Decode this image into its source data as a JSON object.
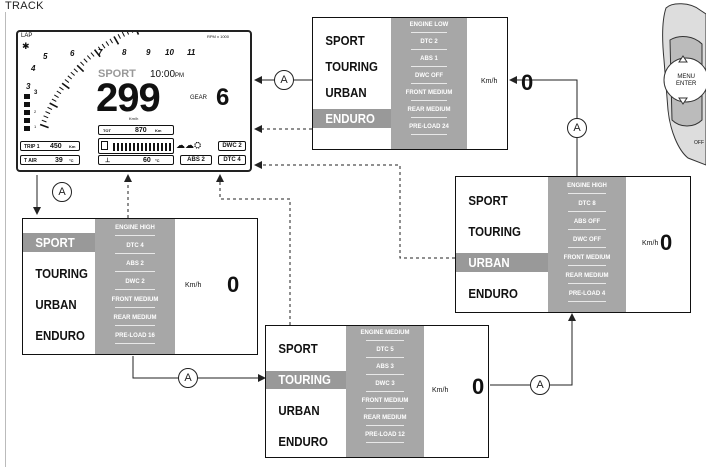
{
  "title": "TRACK",
  "dashboard": {
    "lap": "LAP",
    "rpm_label": "RPM x 1000",
    "rpm_ticks": [
      "3",
      "4",
      "5",
      "6",
      "7",
      "8",
      "9",
      "10",
      "11"
    ],
    "mode": "SPORT",
    "time": "10:00",
    "time_suffix": "PM",
    "speed": "299",
    "speed_unit": "Km/h",
    "gear_label": "GEAR",
    "gear": "6",
    "tot_label": "TOT",
    "tot_value": "870",
    "tot_unit": "Km",
    "trip_label": "TRIP 1",
    "trip_value": "450",
    "trip_unit": "Km",
    "tair_label": "T AIR",
    "tair_value": "39",
    "tair_unit": "°C",
    "coolant_value": "60",
    "coolant_unit": "°C",
    "dwc": "DWC 2",
    "abs": "ABS 2",
    "dtc": "DTC 4",
    "fuel_bar_ticks": [
      "1",
      "2",
      "3"
    ]
  },
  "panels": [
    {
      "modes": [
        "SPORT",
        "TOURING",
        "URBAN",
        "ENDURO"
      ],
      "selected": 3,
      "settings": [
        "ENGINE LOW",
        "DTC 2",
        "ABS 1",
        "DWC OFF",
        "FRONT MEDIUM",
        "REAR MEDIUM",
        "PRE-LOAD 24"
      ],
      "unit": "Km/h",
      "speed": "0"
    },
    {
      "modes": [
        "SPORT",
        "TOURING",
        "URBAN",
        "ENDURO"
      ],
      "selected": 2,
      "settings": [
        "ENGINE HIGH",
        "DTC 8",
        "ABS OFF",
        "DWC OFF",
        "FRONT MEDIUM",
        "REAR MEDIUM",
        "PRE-LOAD 4"
      ],
      "unit": "Km/h",
      "speed": "0"
    },
    {
      "modes": [
        "SPORT",
        "TOURING",
        "URBAN",
        "ENDURO"
      ],
      "selected": 0,
      "settings": [
        "ENGINE HIGH",
        "DTC 4",
        "ABS 2",
        "DWC 2",
        "FRONT MEDIUM",
        "REAR MEDIUM",
        "PRE-LOAD 16"
      ],
      "unit": "Km/h",
      "speed": "0"
    },
    {
      "modes": [
        "SPORT",
        "TOURING",
        "URBAN",
        "ENDURO"
      ],
      "selected": 1,
      "settings": [
        "ENGINE MEDIUM",
        "DTC 5",
        "ABS 3",
        "DWC 3",
        "FRONT MEDIUM",
        "REAR MEDIUM",
        "PRE-LOAD 12"
      ],
      "unit": "Km/h",
      "speed": "0"
    }
  ],
  "marker_label": "A",
  "switch": {
    "menu": "MENU",
    "enter": "ENTER",
    "off": "OFF"
  }
}
